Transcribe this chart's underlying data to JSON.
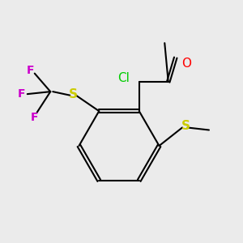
{
  "background_color": "#ebebeb",
  "atom_colors": {
    "Cl": "#00cc00",
    "O": "#ff0000",
    "S_left": "#cccc00",
    "S_right": "#cccc00",
    "F": "#cc00cc"
  },
  "font_sizes": {
    "Cl": 11,
    "O": 11,
    "S": 11,
    "F": 10,
    "CH3": 9
  },
  "lw": 1.5
}
